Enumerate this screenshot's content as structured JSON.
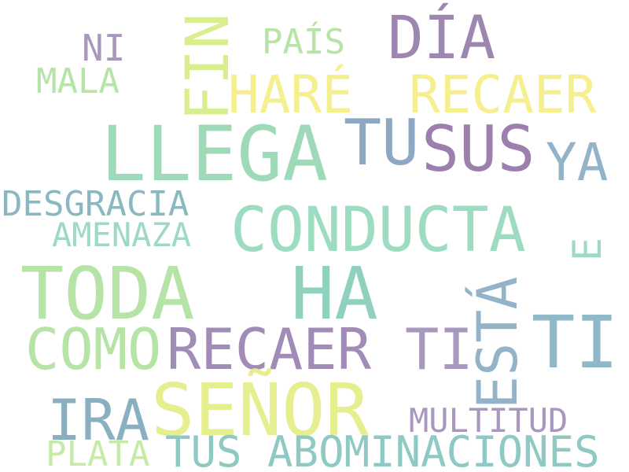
{
  "words": [
    {
      "id": "fin",
      "text": "FIN",
      "color": "#d9ee8f",
      "rotated": true
    },
    {
      "id": "dia",
      "text": "DÍA",
      "color": "#9d87b1",
      "rotated": false
    },
    {
      "id": "pais",
      "text": "PAÍS",
      "color": "#b6e3a6",
      "rotated": false
    },
    {
      "id": "ni",
      "text": "NI",
      "color": "#a898bd",
      "rotated": false
    },
    {
      "id": "mala",
      "text": "MALA",
      "color": "#b6e3a6",
      "rotated": false
    },
    {
      "id": "hare",
      "text": "HARÉ",
      "color": "#f6ef8e",
      "rotated": false
    },
    {
      "id": "recaer-top",
      "text": "RECAER",
      "color": "#f6ef8e",
      "rotated": false
    },
    {
      "id": "llega",
      "text": "LLEGA",
      "color": "#9ed9b8",
      "rotated": false
    },
    {
      "id": "tu",
      "text": "TU",
      "color": "#8ea8c3",
      "rotated": false
    },
    {
      "id": "sus",
      "text": "SUS",
      "color": "#9d7fae",
      "rotated": false
    },
    {
      "id": "ya",
      "text": "YA",
      "color": "#93b3c8",
      "rotated": false
    },
    {
      "id": "desgracia",
      "text": "DESGRACIA",
      "color": "#8ab8c0",
      "rotated": false
    },
    {
      "id": "amenaza",
      "text": "AMENAZA",
      "color": "#9ed9c8",
      "rotated": false
    },
    {
      "id": "conducta",
      "text": "CONDUCTA",
      "color": "#9ddcc0",
      "rotated": false
    },
    {
      "id": "e",
      "text": "E",
      "color": "#9ed9c8",
      "rotated": true
    },
    {
      "id": "toda",
      "text": "TODA",
      "color": "#b6e3a6",
      "rotated": false
    },
    {
      "id": "ha",
      "text": "HA",
      "color": "#8fd1be",
      "rotated": false
    },
    {
      "id": "esta",
      "text": "ESTÁ",
      "color": "#93b3c8",
      "rotated": true
    },
    {
      "id": "ti-right",
      "text": "TI",
      "color": "#8fb8c8",
      "rotated": false
    },
    {
      "id": "como",
      "text": "COMO",
      "color": "#b6e3a6",
      "rotated": false
    },
    {
      "id": "recaer-mid",
      "text": "RECAER",
      "color": "#a08cb6",
      "rotated": false
    },
    {
      "id": "ti-mid",
      "text": "TI",
      "color": "#a898bd",
      "rotated": false
    },
    {
      "id": "ira",
      "text": "IRA",
      "color": "#8ab0c0",
      "rotated": false
    },
    {
      "id": "senor",
      "text": "SEÑOR",
      "color": "#e6ef90",
      "rotated": false
    },
    {
      "id": "multitud",
      "text": "MULTITUD",
      "color": "#a898bd",
      "rotated": false
    },
    {
      "id": "plata",
      "text": "PLATA",
      "color": "#c6eaa8",
      "rotated": false
    },
    {
      "id": "abominaciones",
      "text": "TUS ABOMINACIONES",
      "color": "#8fc9c4",
      "rotated": false
    }
  ]
}
